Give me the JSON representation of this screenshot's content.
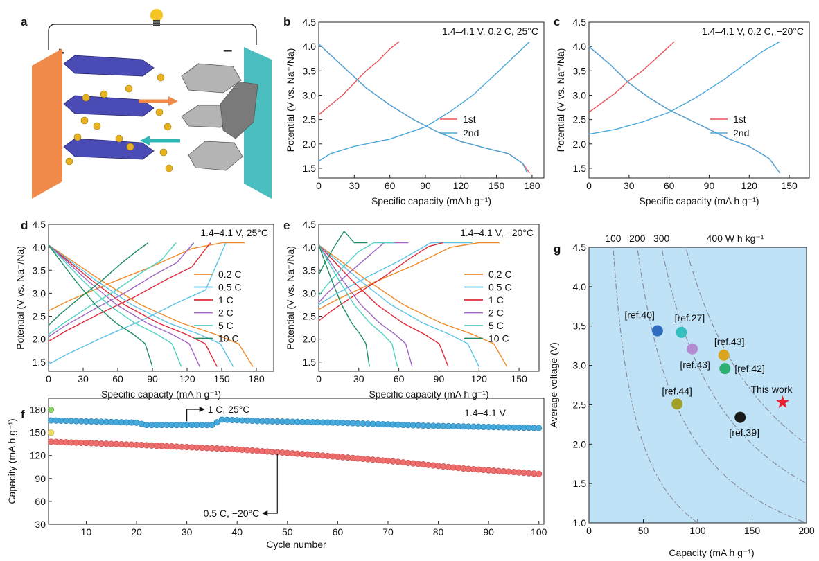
{
  "panel_labels": [
    "a",
    "b",
    "c",
    "d",
    "e",
    "f",
    "g"
  ],
  "schematic": {
    "plus": "+",
    "minus": "–",
    "colors": {
      "cathode": "#f08a4b",
      "anode": "#4bbec0",
      "layer": "#4b4bb5",
      "ion": "#e6b21f",
      "sheet": "#9a9a9a",
      "arrow_right": "#f08a4b",
      "arrow_left": "#2fb8b8"
    }
  },
  "chart_data": [
    {
      "panel": "b",
      "type": "line",
      "annotation": "1.4–4.1 V, 0.2 C, 25°C",
      "xlabel": "Specific capacity (mA h g⁻¹)",
      "ylabel": "Potential (V vs. Na⁺/Na)",
      "xlim": [
        0,
        190
      ],
      "ylim": [
        1.3,
        4.5
      ],
      "xticks": [
        0,
        30,
        60,
        90,
        120,
        150,
        180
      ],
      "yticks": [
        1.5,
        2.0,
        2.5,
        3.0,
        3.5,
        4.0,
        4.5
      ],
      "series": [
        {
          "name": "1st",
          "color": "#e8565b",
          "segments": [
            {
              "x": [
                0,
                10,
                20,
                30,
                40,
                50,
                60,
                68
              ],
              "y": [
                2.6,
                2.8,
                3.0,
                3.25,
                3.5,
                3.7,
                3.95,
                4.1
              ]
            },
            {
              "x": [
                0,
                20,
                40,
                60,
                80,
                100,
                120,
                140,
                160,
                172,
                178
              ],
              "y": [
                4.05,
                3.6,
                3.15,
                2.8,
                2.5,
                2.25,
                2.05,
                1.92,
                1.8,
                1.6,
                1.4
              ]
            }
          ]
        },
        {
          "name": "2nd",
          "color": "#4aa8dc",
          "segments": [
            {
              "x": [
                0,
                20,
                40,
                60,
                80,
                100,
                120,
                140,
                160,
                172,
                176
              ],
              "y": [
                4.05,
                3.6,
                3.15,
                2.8,
                2.5,
                2.25,
                2.05,
                1.92,
                1.8,
                1.6,
                1.4
              ]
            },
            {
              "x": [
                0,
                10,
                30,
                60,
                90,
                110,
                130,
                150,
                165,
                178
              ],
              "y": [
                1.65,
                1.8,
                1.95,
                2.1,
                2.35,
                2.65,
                3.0,
                3.45,
                3.8,
                4.1
              ]
            }
          ]
        }
      ]
    },
    {
      "panel": "c",
      "type": "line",
      "annotation": "1.4–4.1 V, 0.2 C, −20°C",
      "xlabel": "Specific capacity (mA h g⁻¹)",
      "ylabel": "Potential (V vs. Na⁺/Na)",
      "xlim": [
        0,
        165
      ],
      "ylim": [
        1.3,
        4.5
      ],
      "xticks": [
        0,
        30,
        60,
        90,
        120,
        150
      ],
      "yticks": [
        1.5,
        2.0,
        2.5,
        3.0,
        3.5,
        4.0,
        4.5
      ],
      "series": [
        {
          "name": "1st",
          "color": "#e8565b",
          "segments": [
            {
              "x": [
                0,
                10,
                20,
                30,
                40,
                50,
                60,
                64
              ],
              "y": [
                2.65,
                2.85,
                3.05,
                3.3,
                3.5,
                3.75,
                4.0,
                4.1
              ]
            },
            {
              "x": [
                0,
                15,
                30,
                45,
                60,
                75,
                90,
                105,
                120,
                135,
                143
              ],
              "y": [
                4.0,
                3.65,
                3.25,
                2.95,
                2.7,
                2.5,
                2.3,
                2.1,
                1.95,
                1.7,
                1.4
              ]
            }
          ]
        },
        {
          "name": "2nd",
          "color": "#4aa8dc",
          "segments": [
            {
              "x": [
                0,
                15,
                30,
                45,
                60,
                75,
                90,
                105,
                120,
                135,
                143
              ],
              "y": [
                4.0,
                3.65,
                3.25,
                2.95,
                2.7,
                2.5,
                2.3,
                2.1,
                1.95,
                1.7,
                1.4
              ]
            },
            {
              "x": [
                0,
                20,
                40,
                60,
                80,
                100,
                115,
                130,
                143
              ],
              "y": [
                2.2,
                2.3,
                2.45,
                2.65,
                2.95,
                3.3,
                3.6,
                3.9,
                4.1
              ]
            }
          ]
        }
      ]
    },
    {
      "panel": "d",
      "type": "line",
      "annotation": "1.4–4.1 V, 25°C",
      "xlabel": "Specific capacity (mA h g⁻¹)",
      "ylabel": "Potential (V vs. Na⁺/Na)",
      "xlim": [
        0,
        195
      ],
      "ylim": [
        1.3,
        4.5
      ],
      "xticks": [
        0,
        30,
        60,
        90,
        120,
        150,
        180
      ],
      "yticks": [
        1.5,
        2.0,
        2.5,
        3.0,
        3.5,
        4.0,
        4.5
      ],
      "series": [
        {
          "name": "0.2 C",
          "color": "#ef8a2a",
          "cap": 177,
          "v0": 2.62
        },
        {
          "name": "0.5 C",
          "color": "#5ec3e6",
          "cap": 160,
          "v0": 1.45
        },
        {
          "name": "1 C",
          "color": "#de2b3a",
          "cap": 146,
          "v0": 1.95
        },
        {
          "name": "2 C",
          "color": "#a064c4",
          "cap": 131,
          "v0": 2.05
        },
        {
          "name": "5 C",
          "color": "#4fd1c2",
          "cap": 115,
          "v0": 2.1
        },
        {
          "name": "10 C",
          "color": "#1f8d63",
          "cap": 90,
          "v0": 2.3
        }
      ]
    },
    {
      "panel": "e",
      "type": "line",
      "annotation": "1.4–4.1 V, −20°C",
      "xlabel": "Specific capacity (mA h g⁻¹)",
      "ylabel": "Potential (V vs. Na⁺/Na)",
      "xlim": [
        0,
        165
      ],
      "ylim": [
        1.3,
        4.5
      ],
      "xticks": [
        0,
        30,
        60,
        90,
        120,
        150
      ],
      "yticks": [
        1.5,
        2.0,
        2.5,
        3.0,
        3.5,
        4.0,
        4.5
      ],
      "series": [
        {
          "name": "0.2 C",
          "color": "#ef8a2a",
          "cap": 141,
          "v0": 2.65
        },
        {
          "name": "0.5 C",
          "color": "#5ec3e6",
          "cap": 120,
          "v0": 2.75
        },
        {
          "name": "1 C",
          "color": "#de2b3a",
          "cap": 97,
          "v0": 2.4
        },
        {
          "name": "2 C",
          "color": "#a064c4",
          "cap": 70,
          "v0": 2.8
        },
        {
          "name": "5 C",
          "color": "#4fd1c2",
          "cap": 59,
          "v0": 2.95
        },
        {
          "name": "10 C",
          "color": "#1f8d63",
          "cap": 38,
          "v0": 3.4
        }
      ]
    },
    {
      "panel": "f",
      "type": "scatter",
      "annotation": "1.4–4.1 V",
      "xlabel": "Cycle number",
      "ylabel": "Capacity (mA h g⁻¹)",
      "xlim": [
        2.5,
        101
      ],
      "ylim": [
        30,
        195
      ],
      "xticks": [
        10,
        20,
        30,
        40,
        50,
        60,
        70,
        80,
        90,
        100
      ],
      "yticks": [
        30,
        60,
        90,
        120,
        150,
        180
      ],
      "callouts": [
        "1 C, 25°C",
        "0.5 C, −20°C"
      ],
      "series": [
        {
          "label": "1 C, 25°C",
          "color": "#45aadb",
          "edge": "#2a7fb0",
          "first_value": 166,
          "segments": [
            [
              3,
              166
            ],
            [
              20,
              163
            ],
            [
              22,
              160
            ],
            [
              35,
              160
            ],
            [
              37,
              167
            ],
            [
              45,
              165
            ],
            [
              60,
              163
            ],
            [
              78,
              159
            ],
            [
              100,
              156
            ]
          ]
        },
        {
          "label": "0.5 C, −20°C",
          "color": "#ee6e6e",
          "edge": "#c94b4b",
          "first_value": 138,
          "segments": [
            [
              3,
              138
            ],
            [
              20,
              134
            ],
            [
              40,
              128
            ],
            [
              55,
              121
            ],
            [
              70,
              113
            ],
            [
              85,
              103
            ],
            [
              100,
              96
            ]
          ]
        }
      ]
    },
    {
      "panel": "g",
      "type": "scatter",
      "xlabel": "Capacity (mA h g⁻¹)",
      "ylabel": "Average voltage (V)",
      "xlim": [
        0,
        200
      ],
      "ylim": [
        1.0,
        4.5
      ],
      "xticks": [
        0,
        50,
        100,
        150,
        200
      ],
      "yticks": [
        1.0,
        1.5,
        2.0,
        2.5,
        3.0,
        3.5,
        4.0,
        4.5
      ],
      "energy_density_lines": [
        100,
        200,
        300,
        400
      ],
      "top_labels": [
        "100",
        "200",
        "300",
        "400 W h kg⁻¹"
      ],
      "background": "#bfe2f6",
      "points": [
        {
          "label": "[ref.40]",
          "x": 63,
          "y": 3.44,
          "color": "#2e6cc1"
        },
        {
          "label": "[ref.27]",
          "x": 85,
          "y": 3.42,
          "color": "#35bfbf"
        },
        {
          "label": "[ref.43]",
          "x": 95,
          "y": 3.21,
          "color": "#b48bd1"
        },
        {
          "label": "[ref.43]",
          "x": 124,
          "y": 3.13,
          "color": "#d9a520"
        },
        {
          "label": "[ref.42]",
          "x": 125,
          "y": 2.96,
          "color": "#2eaf72"
        },
        {
          "label": "[ref.44]",
          "x": 81,
          "y": 2.51,
          "color": "#a3a02a"
        },
        {
          "label": "[ref.39]",
          "x": 139,
          "y": 2.34,
          "color": "#1a1a1a"
        },
        {
          "label": "This work",
          "x": 178,
          "y": 2.53,
          "color": "#e8222e",
          "marker": "star"
        }
      ]
    }
  ]
}
